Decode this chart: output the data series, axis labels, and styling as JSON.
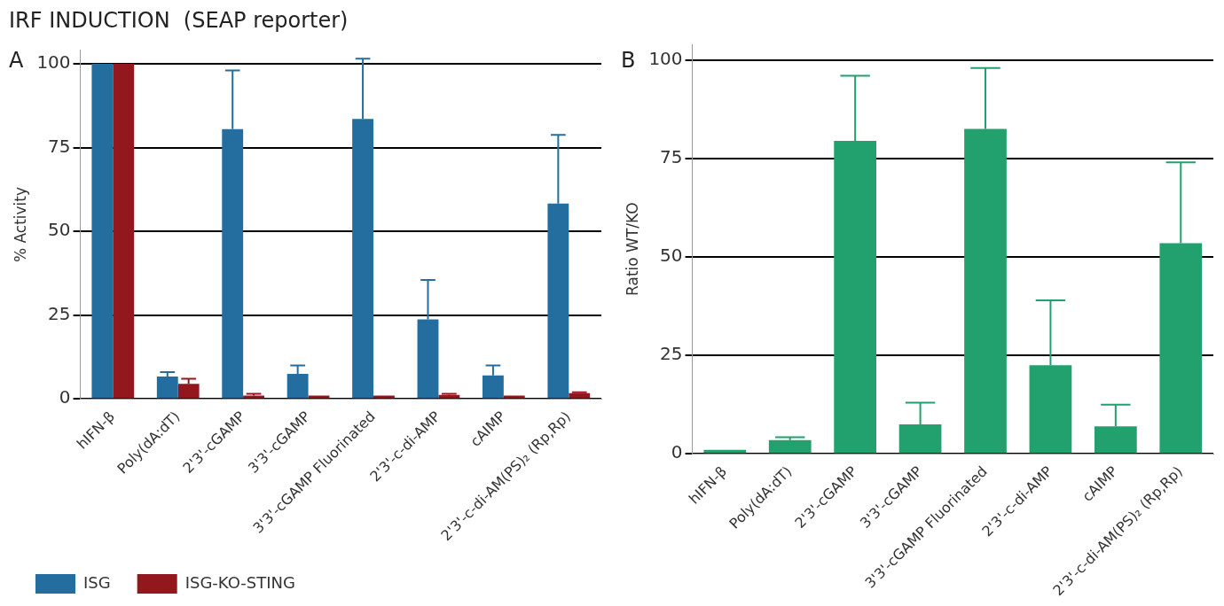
{
  "chart_data": [
    {
      "type": "bar",
      "title": "IRF INDUCTION  (SEAP reporter)",
      "ylabel": "% Activity",
      "annotations": [
        "A"
      ],
      "categories": [
        "hIFN-β",
        "Poly(dA:dT)",
        "2'3'-cGAMP",
        "3'3'-cGAMP",
        "3'3'-cGAMP Fluorinated",
        "2'3'-c-di-AMP",
        "cAIMP",
        "2'3'-c-di-AM(PS)₂ (Rp,Rp)"
      ],
      "series": [
        {
          "name": "ISG",
          "color": "#236e9f",
          "values": [
            100,
            6.7,
            80.5,
            7.5,
            83.5,
            23.7,
            7,
            58.3
          ],
          "errors": [
            null,
            [
              6.7,
              8
            ],
            [
              80.5,
              98
            ],
            [
              7.5,
              10
            ],
            [
              83.5,
              101.5
            ],
            [
              23.7,
              35.5
            ],
            [
              7,
              10
            ],
            [
              58.3,
              78.8
            ]
          ]
        },
        {
          "name": "ISG-KO-STING",
          "color": "#93181e",
          "values": [
            100,
            4.5,
            1,
            1,
            1,
            1.2,
            1,
            1.7
          ],
          "errors": [
            null,
            [
              4.5,
              6
            ],
            [
              1,
              1.5
            ],
            null,
            null,
            [
              1.2,
              1.5
            ],
            null,
            [
              1.7,
              2
            ]
          ]
        }
      ],
      "ylim": [
        0,
        104
      ],
      "yticks": [
        0,
        25,
        50,
        75,
        100
      ],
      "grid": "y",
      "legend": "bottom"
    },
    {
      "type": "bar",
      "ylabel": "Ratio WT/KO",
      "annotations": [
        "B"
      ],
      "categories": [
        "hIFN-β",
        "Poly(dA:dT)",
        "2'3'-cGAMP",
        "3'3'-cGAMP",
        "3'3'-cGAMP Fluorinated",
        "2'3'-c-di-AMP",
        "cAIMP",
        "2'3'-c-di-AM(PS)₂ (Rp,Rp)"
      ],
      "series": [
        {
          "color": "#22a06e",
          "values": [
            1,
            3.5,
            79.5,
            7.5,
            82.5,
            22.5,
            7,
            53.5
          ],
          "errors": [
            null,
            [
              3.5,
              4.2
            ],
            [
              79.5,
              96
            ],
            [
              7.5,
              13
            ],
            [
              82.5,
              98
            ],
            [
              22.5,
              39
            ],
            [
              7,
              12.5
            ],
            [
              53.5,
              74
            ]
          ]
        }
      ],
      "ylim": [
        0,
        104
      ],
      "yticks": [
        0,
        25,
        50,
        75,
        100
      ],
      "grid": "y"
    }
  ]
}
